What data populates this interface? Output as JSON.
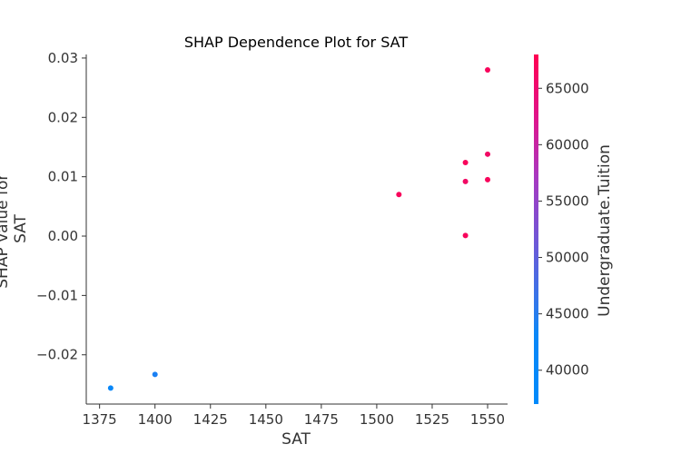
{
  "chart_data": {
    "type": "scatter",
    "title": "SHAP Dependence Plot for SAT",
    "xlabel": "SAT",
    "ylabel_lines": [
      "SHAP value for",
      "SAT"
    ],
    "xlim": [
      1369,
      1559
    ],
    "ylim": [
      -0.0283,
      0.0306
    ],
    "xticks": [
      1375,
      1400,
      1425,
      1450,
      1475,
      1500,
      1525,
      1550
    ],
    "yticks": [
      -0.02,
      -0.01,
      0.0,
      0.01,
      0.02,
      0.03
    ],
    "ytick_labels": [
      "−0.02",
      "−0.01",
      "0.00",
      "0.01",
      "0.02",
      "0.03"
    ],
    "grid": false,
    "points": [
      {
        "x": 1380,
        "y": -0.0256,
        "c": 38000
      },
      {
        "x": 1400,
        "y": -0.0233,
        "c": 40000
      },
      {
        "x": 1510,
        "y": 0.007,
        "c": 67000
      },
      {
        "x": 1540,
        "y": 0.0124,
        "c": 67000
      },
      {
        "x": 1540,
        "y": 0.0092,
        "c": 66000
      },
      {
        "x": 1540,
        "y": 0.0001,
        "c": 67000
      },
      {
        "x": 1550,
        "y": 0.028,
        "c": 67000
      },
      {
        "x": 1550,
        "y": 0.0138,
        "c": 66000
      },
      {
        "x": 1550,
        "y": 0.0095,
        "c": 67000
      }
    ],
    "colorbar": {
      "label": "Undergraduate.Tuition",
      "range": [
        37000,
        68000
      ],
      "ticks": [
        40000,
        45000,
        50000,
        55000,
        60000,
        65000
      ],
      "tick_labels": [
        "40000",
        "45000",
        "50000",
        "55000",
        "60000",
        "65000"
      ],
      "colors": [
        "#008afb",
        "#5b66e0",
        "#b52db4",
        "#ff0051"
      ]
    },
    "axis_color": "#333333"
  }
}
